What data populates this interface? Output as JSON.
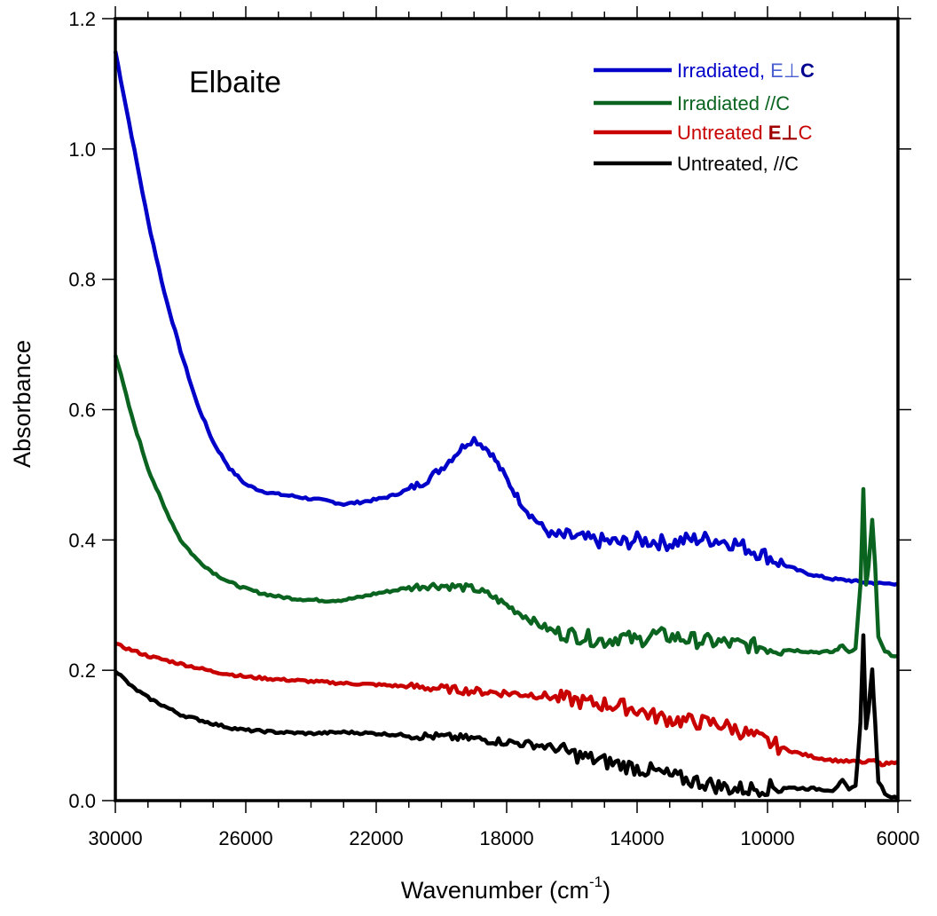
{
  "chart_data": {
    "type": "line",
    "title": "Elbaite",
    "xlabel": "Wavenumber (cm",
    "xlabel_superscript": "-1",
    "xlabel_suffix": ")",
    "ylabel": "Absorbance",
    "xlim": [
      30000,
      6000
    ],
    "ylim": [
      0.0,
      1.2
    ],
    "x_reversed": true,
    "x_major_ticks": [
      30000,
      26000,
      22000,
      18000,
      14000,
      10000,
      6000
    ],
    "x_tick_labels": [
      "30000",
      "26000",
      "22000",
      "18000",
      "14000",
      "10000",
      "6000"
    ],
    "x_minor_step": 1000,
    "y_ticks": [
      0.0,
      0.2,
      0.4,
      0.6,
      0.8,
      1.0,
      1.2
    ],
    "y_tick_labels": [
      "0.0",
      "0.2",
      "0.4",
      "0.6",
      "0.8",
      "1.0",
      "1.2"
    ],
    "grid": false,
    "legend_position": "top-right",
    "series": [
      {
        "name": "Irradiated, E⊥C",
        "legend_parts": [
          "Irradiated, ",
          "E⊥",
          "C"
        ],
        "color": "#0000c8",
        "x": [
          30000,
          29500,
          29000,
          28500,
          28000,
          27500,
          27000,
          26500,
          26000,
          25500,
          25000,
          24500,
          24000,
          23500,
          23000,
          22500,
          22000,
          21500,
          21000,
          20500,
          20000,
          19600,
          19200,
          19000,
          18800,
          18500,
          18200,
          17900,
          17600,
          17300,
          17000,
          16700,
          16400,
          16000,
          15500,
          15000,
          14500,
          14000,
          13500,
          13000,
          12500,
          12000,
          11500,
          11000,
          10500,
          10000,
          9500,
          9000,
          8500,
          8000,
          7500,
          7200,
          7000,
          6800,
          6500,
          6200,
          6000
        ],
        "y": [
          1.15,
          1.02,
          0.89,
          0.78,
          0.69,
          0.61,
          0.55,
          0.51,
          0.485,
          0.475,
          0.47,
          0.467,
          0.463,
          0.46,
          0.455,
          0.458,
          0.462,
          0.468,
          0.478,
          0.49,
          0.51,
          0.53,
          0.55,
          0.555,
          0.548,
          0.535,
          0.51,
          0.485,
          0.46,
          0.44,
          0.425,
          0.41,
          0.405,
          0.405,
          0.4,
          0.398,
          0.395,
          0.4,
          0.398,
          0.395,
          0.4,
          0.402,
          0.4,
          0.395,
          0.385,
          0.375,
          0.362,
          0.352,
          0.345,
          0.34,
          0.338,
          0.336,
          0.335,
          0.334,
          0.333,
          0.333,
          0.333
        ]
      },
      {
        "name": "Irradiated //C",
        "legend_parts": [
          "Irradiated //C"
        ],
        "color": "#0a6420",
        "x": [
          30000,
          29500,
          29000,
          28500,
          28000,
          27500,
          27000,
          26500,
          26000,
          25500,
          25000,
          24500,
          24000,
          23500,
          23000,
          22500,
          22000,
          21500,
          21000,
          20500,
          20000,
          19500,
          19000,
          18500,
          18000,
          17500,
          17000,
          16500,
          16000,
          15500,
          15000,
          14500,
          14000,
          13500,
          13000,
          12500,
          12000,
          11500,
          11000,
          10500,
          10000,
          9500,
          9000,
          8500,
          8000,
          7700,
          7500,
          7300,
          7150,
          7060,
          6980,
          6900,
          6790,
          6700,
          6600,
          6400,
          6200,
          6000
        ],
        "y": [
          0.685,
          0.59,
          0.51,
          0.45,
          0.4,
          0.37,
          0.35,
          0.335,
          0.325,
          0.318,
          0.313,
          0.31,
          0.308,
          0.307,
          0.308,
          0.312,
          0.318,
          0.322,
          0.327,
          0.33,
          0.33,
          0.328,
          0.325,
          0.315,
          0.3,
          0.285,
          0.27,
          0.258,
          0.255,
          0.25,
          0.245,
          0.252,
          0.245,
          0.255,
          0.252,
          0.248,
          0.245,
          0.243,
          0.24,
          0.238,
          0.235,
          0.232,
          0.23,
          0.228,
          0.228,
          0.238,
          0.228,
          0.235,
          0.33,
          0.477,
          0.33,
          0.36,
          0.43,
          0.36,
          0.25,
          0.228,
          0.224,
          0.222
        ]
      },
      {
        "name": "Untreated E⊥C",
        "legend_parts": [
          "Untreated ",
          "E⊥",
          "C"
        ],
        "color": "#c80000",
        "x": [
          30000,
          29000,
          28000,
          27000,
          26000,
          25000,
          24000,
          23000,
          22000,
          21000,
          20000,
          19000,
          18000,
          17000,
          16500,
          16000,
          15500,
          15000,
          14500,
          14000,
          13500,
          13000,
          12500,
          12000,
          11500,
          11000,
          10500,
          10000,
          9500,
          9000,
          8500,
          8000,
          7500,
          7200,
          7000,
          6800,
          6500,
          6200,
          6000
        ],
        "y": [
          0.24,
          0.222,
          0.21,
          0.198,
          0.19,
          0.186,
          0.183,
          0.18,
          0.178,
          0.175,
          0.172,
          0.168,
          0.165,
          0.162,
          0.158,
          0.155,
          0.15,
          0.148,
          0.145,
          0.14,
          0.13,
          0.125,
          0.122,
          0.12,
          0.118,
          0.11,
          0.1,
          0.09,
          0.08,
          0.072,
          0.066,
          0.062,
          0.06,
          0.06,
          0.058,
          0.062,
          0.056,
          0.058,
          0.06
        ]
      },
      {
        "name": "Untreated, //C",
        "legend_parts": [
          "Untreated, //C"
        ],
        "color": "#000000",
        "x": [
          30000,
          29500,
          29000,
          28500,
          28000,
          27500,
          27000,
          26500,
          26000,
          25000,
          24000,
          23000,
          22000,
          21000,
          20000,
          19000,
          18000,
          17000,
          16500,
          16000,
          15500,
          15000,
          14500,
          14000,
          13500,
          13000,
          12500,
          12000,
          11500,
          11000,
          10500,
          10000,
          9500,
          9000,
          8500,
          8000,
          7700,
          7500,
          7300,
          7150,
          7060,
          6980,
          6900,
          6790,
          6700,
          6600,
          6400,
          6200,
          6000
        ],
        "y": [
          0.2,
          0.175,
          0.158,
          0.145,
          0.132,
          0.125,
          0.118,
          0.112,
          0.108,
          0.105,
          0.103,
          0.105,
          0.103,
          0.1,
          0.098,
          0.095,
          0.09,
          0.085,
          0.08,
          0.072,
          0.065,
          0.06,
          0.055,
          0.05,
          0.045,
          0.038,
          0.032,
          0.028,
          0.022,
          0.018,
          0.018,
          0.02,
          0.02,
          0.019,
          0.018,
          0.016,
          0.03,
          0.016,
          0.022,
          0.12,
          0.255,
          0.11,
          0.14,
          0.2,
          0.12,
          0.03,
          0.012,
          0.006,
          0.003
        ]
      }
    ]
  }
}
